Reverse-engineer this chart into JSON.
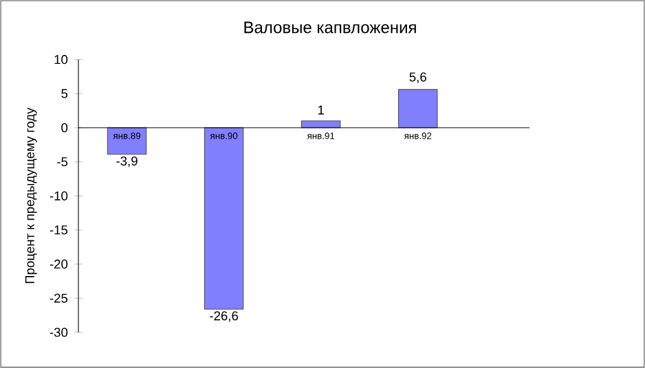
{
  "chart_data": {
    "type": "bar",
    "title": "Валовые капвложения",
    "ylabel": "Процент к предыдущему году",
    "categories": [
      "янв.89",
      "янв.90",
      "янв.91",
      "янв.92"
    ],
    "values": [
      -3.9,
      -26.6,
      1,
      5.6
    ],
    "value_labels": [
      "-3,9",
      "-26,6",
      "1",
      "5,6"
    ],
    "color": "#8080ff",
    "ylim": [
      -30,
      10
    ],
    "yticks": [
      -30,
      -25,
      -20,
      -15,
      -10,
      -5,
      0,
      5,
      10
    ],
    "grid": false
  }
}
